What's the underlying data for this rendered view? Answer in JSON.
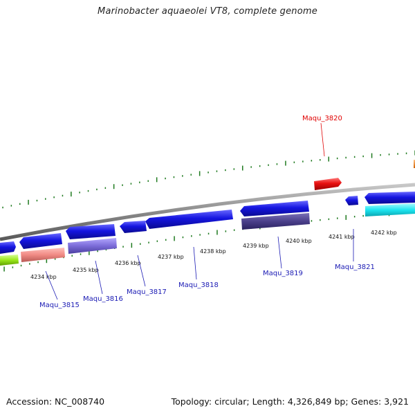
{
  "title": "Marinobacter aquaeolei VT8, complete genome",
  "footer": {
    "accession": "Accession: NC_008740",
    "summary": "Topology: circular; Length: 4,326,849 bp; Genes: 3,921"
  },
  "scale": {
    "labels": [
      "4234 kbp",
      "4235 kbp",
      "4236 kbp",
      "4237 kbp",
      "4238 kbp",
      "4239 kbp",
      "4240 kbp",
      "4241 kbp",
      "4242 kbp"
    ]
  },
  "genes": [
    {
      "name": "Maqu_3815",
      "color": "#1a1ab4"
    },
    {
      "name": "Maqu_3816",
      "color": "#1a1ab4"
    },
    {
      "name": "Maqu_3817",
      "color": "#1a1ab4"
    },
    {
      "name": "Maqu_3818",
      "color": "#1a1ab4"
    },
    {
      "name": "Maqu_3819",
      "color": "#1a1ab4"
    },
    {
      "name": "Maqu_3820",
      "color": "#e00000"
    },
    {
      "name": "Maqu_3821",
      "color": "#1a1ab4"
    }
  ],
  "colors": {
    "backbone": "#8a8a8a",
    "gene_blue": "#1515e0",
    "gene_red": "#e81010",
    "tick_green": "#1f7a1f",
    "cyan": "#1de6f0",
    "purple": "#7b6cd8",
    "dark_purple": "#4a3f8a",
    "salmon": "#f08a84",
    "lime": "#9ae81a",
    "orange": "#f08a1a"
  }
}
